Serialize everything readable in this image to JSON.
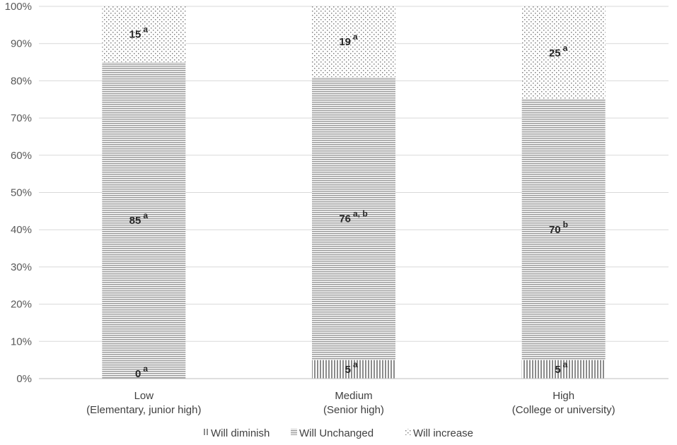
{
  "chart_data": {
    "type": "bar",
    "stacked": true,
    "percent_stacked": true,
    "categories": [
      [
        "Low",
        "(Elementary, junior high)"
      ],
      [
        "Medium",
        "(Senior high)"
      ],
      [
        "High",
        "(College or university)"
      ]
    ],
    "series": [
      {
        "name": "Will diminish",
        "values": [
          0,
          5,
          5
        ],
        "superscripts": [
          "a",
          "a",
          "a"
        ],
        "pattern": "vertical-lines"
      },
      {
        "name": "Will Unchanged",
        "values": [
          85,
          76,
          70
        ],
        "superscripts": [
          "a",
          "a, b",
          "b"
        ],
        "pattern": "horizontal-lines"
      },
      {
        "name": "Will increase",
        "values": [
          15,
          19,
          25
        ],
        "superscripts": [
          "a",
          "a",
          "a"
        ],
        "pattern": "dots"
      }
    ],
    "yticks": [
      "0%",
      "10%",
      "20%",
      "30%",
      "40%",
      "50%",
      "60%",
      "70%",
      "80%",
      "90%",
      "100%"
    ],
    "ylim": [
      0,
      100
    ],
    "grid": true,
    "legend_position": "bottom",
    "title": "",
    "xlabel": "",
    "ylabel": ""
  }
}
